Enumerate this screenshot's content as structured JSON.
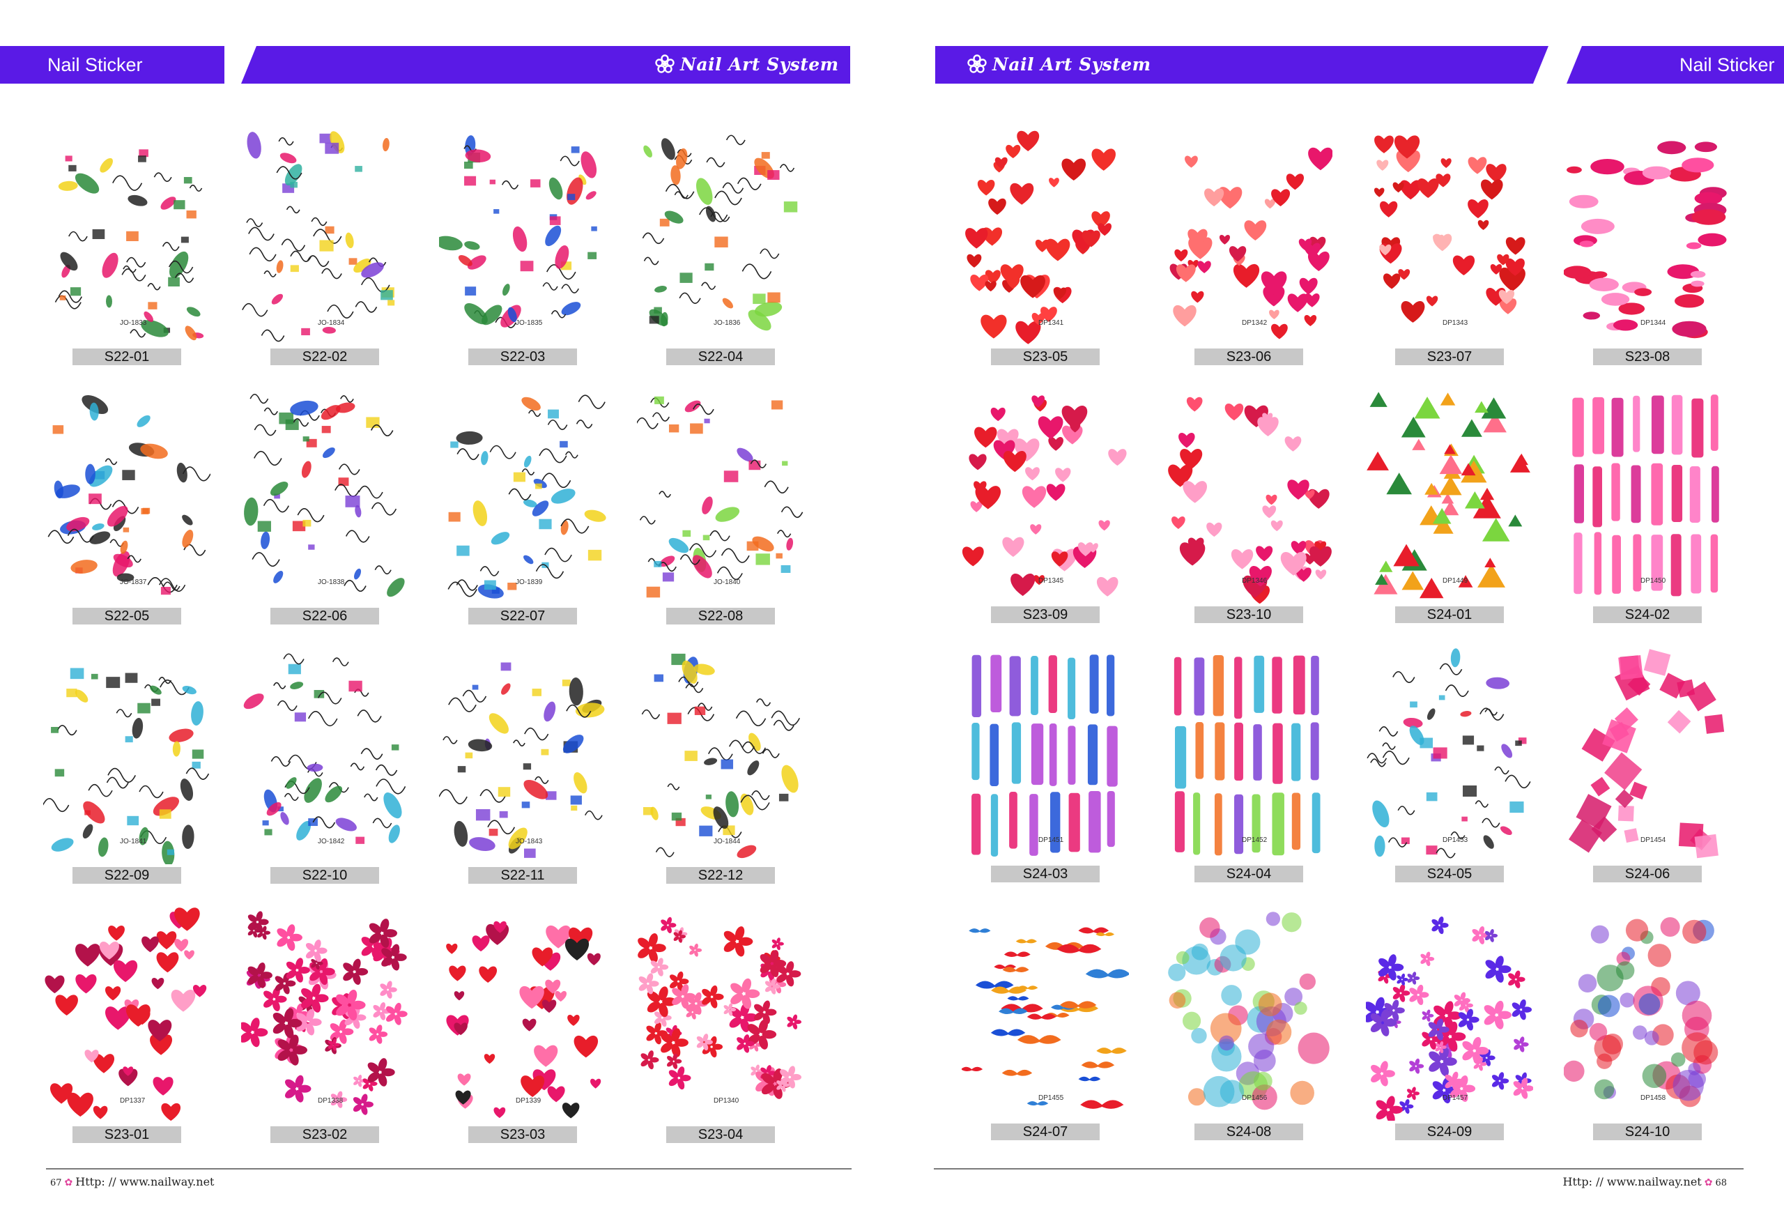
{
  "left_page": {
    "section_label": "Nail Sticker",
    "brand_label": "Nail Art System",
    "footer_url": "Http: // www.nailway.net",
    "page_number": "67",
    "sheets": [
      {
        "code": "S22-01",
        "print": "JO-1833",
        "palette": [
          "#222222",
          "#e8176b",
          "#f2d21a",
          "#2a8a3a",
          "#f26c1e"
        ]
      },
      {
        "code": "S22-02",
        "print": "JO-1834",
        "palette": [
          "#e8176b",
          "#7b3fd6",
          "#f2d21a",
          "#2fb0a0",
          "#f26c1e"
        ]
      },
      {
        "code": "S22-03",
        "print": "JO-1835",
        "palette": [
          "#1a4fd6",
          "#e81d2a",
          "#2a8a3a",
          "#f2d21a",
          "#e8176b"
        ]
      },
      {
        "code": "S22-04",
        "print": "JO-1836",
        "palette": [
          "#2a8a3a",
          "#f26c1e",
          "#222222",
          "#e8176b",
          "#7bd63f"
        ]
      },
      {
        "code": "S22-05",
        "print": "JO-1837",
        "palette": [
          "#1a4fd6",
          "#f26c1e",
          "#e8176b",
          "#222222",
          "#2fb0d6"
        ]
      },
      {
        "code": "S22-06",
        "print": "JO-1838",
        "palette": [
          "#e81d2a",
          "#7b3fd6",
          "#2a8a3a",
          "#1a4fd6",
          "#f2d21a"
        ]
      },
      {
        "code": "S22-07",
        "print": "JO-1839",
        "palette": [
          "#1a4fd6",
          "#f26c1e",
          "#2fb0d6",
          "#222222",
          "#f2d21a"
        ]
      },
      {
        "code": "S22-08",
        "print": "JO-1840",
        "palette": [
          "#e8176b",
          "#7b3fd6",
          "#2fb0d6",
          "#7bd63f",
          "#f26c1e"
        ]
      },
      {
        "code": "S22-09",
        "print": "JO-1841",
        "palette": [
          "#222222",
          "#e81d2a",
          "#f2d21a",
          "#2fb0d6",
          "#2a8a3a"
        ]
      },
      {
        "code": "S22-10",
        "print": "JO-1842",
        "palette": [
          "#7b3fd6",
          "#2a8a3a",
          "#2fb0d6",
          "#e8176b",
          "#1a4fd6"
        ]
      },
      {
        "code": "S22-11",
        "print": "JO-1843",
        "palette": [
          "#222222",
          "#e81d2a",
          "#1a4fd6",
          "#f2d21a",
          "#7b3fd6"
        ]
      },
      {
        "code": "S22-12",
        "print": "JO-1844",
        "palette": [
          "#e81d2a",
          "#2a8a3a",
          "#1a4fd6",
          "#222222",
          "#f2d21a"
        ]
      },
      {
        "code": "S23-01",
        "print": "DP1337",
        "palette": [
          "#e81d2a",
          "#e8176b",
          "#ff6fa8",
          "#b3124a",
          "#ff9ec7"
        ]
      },
      {
        "code": "S23-02",
        "print": "DP1338",
        "palette": [
          "#e8176b",
          "#ff4fa0",
          "#d61a8a",
          "#ff8cc6",
          "#b3124a"
        ]
      },
      {
        "code": "S23-03",
        "print": "DP1339",
        "palette": [
          "#e81d2a",
          "#e8176b",
          "#ff6fa8",
          "#b3124a",
          "#222222"
        ]
      },
      {
        "code": "S23-04",
        "print": "DP1340",
        "palette": [
          "#e81d2a",
          "#e8176b",
          "#ff6fa8",
          "#ff9ec7",
          "#d61a4a"
        ]
      }
    ]
  },
  "right_page": {
    "section_label": "Nail Sticker",
    "brand_label": "Nail Art System",
    "footer_url": "Http: // www.nailway.net",
    "page_number": "68",
    "sheets": [
      {
        "code": "S23-05",
        "print": "DP1341",
        "palette": [
          "#e81d2a",
          "#f2302a",
          "#d61a1a",
          "#ff4040",
          "#e8242a"
        ]
      },
      {
        "code": "S23-06",
        "print": "DP1342",
        "palette": [
          "#e81d2a",
          "#ff6f6f",
          "#d61a4a",
          "#ff9e9e",
          "#e8176b"
        ]
      },
      {
        "code": "S23-07",
        "print": "DP1343",
        "palette": [
          "#e81d2a",
          "#ff6f6f",
          "#d61a1a",
          "#ffb3b3",
          "#e8242a"
        ]
      },
      {
        "code": "S23-08",
        "print": "DP1344",
        "palette": [
          "#e8176b",
          "#ff4fa0",
          "#d61a6a",
          "#ff8cc6",
          "#e81d4a"
        ]
      },
      {
        "code": "S23-09",
        "print": "DP1345",
        "palette": [
          "#e81d2a",
          "#ff6fa8",
          "#e8176b",
          "#ff9ec7",
          "#d61a4a"
        ]
      },
      {
        "code": "S23-10",
        "print": "DP1346",
        "palette": [
          "#e81d2a",
          "#e8176b",
          "#ff4f6f",
          "#ff9ec7",
          "#d61a4a"
        ]
      },
      {
        "code": "S24-01",
        "print": "DP1449",
        "palette": [
          "#e81d2a",
          "#2a8a3a",
          "#f2a21a",
          "#ff6f8a",
          "#7bd63f"
        ]
      },
      {
        "code": "S24-02",
        "print": "DP1450",
        "palette": [
          "#e8176b",
          "#ff4fa0",
          "#f03ea8",
          "#ff6fc0",
          "#d61a8a"
        ]
      },
      {
        "code": "S24-03",
        "print": "DP1451",
        "palette": [
          "#7b3fd6",
          "#e8176b",
          "#1a4fd6",
          "#2fb0d6",
          "#b33fd6"
        ]
      },
      {
        "code": "S24-04",
        "print": "DP1452",
        "palette": [
          "#f26c1e",
          "#7bd63f",
          "#2fb0d6",
          "#7b3fd6",
          "#e8176b"
        ]
      },
      {
        "code": "S24-05",
        "print": "DP1453",
        "palette": [
          "#e8176b",
          "#7b3fd6",
          "#e81d2a",
          "#2fb0d6",
          "#222222"
        ]
      },
      {
        "code": "S24-06",
        "print": "DP1454",
        "palette": [
          "#e8176b",
          "#ff4fa0",
          "#d61a6a",
          "#ff8cc6",
          "#f03e8a"
        ]
      },
      {
        "code": "S24-07",
        "print": "DP1455",
        "palette": [
          "#1a4fd6",
          "#f26c1e",
          "#2f7fd6",
          "#f2a21a",
          "#e81d2a"
        ]
      },
      {
        "code": "S24-08",
        "print": "DP1456",
        "palette": [
          "#e8176b",
          "#7b3fd6",
          "#2fb0d6",
          "#7bd63f",
          "#f26c1e"
        ]
      },
      {
        "code": "S24-09",
        "print": "DP1457",
        "palette": [
          "#7b3fd6",
          "#e8176b",
          "#b33fd6",
          "#ff6fc0",
          "#5a2ae6"
        ]
      },
      {
        "code": "S24-10",
        "print": "DP1458",
        "palette": [
          "#e8176b",
          "#1a4fd6",
          "#2a8a3a",
          "#e81d2a",
          "#7b3fd6"
        ]
      }
    ]
  },
  "colors": {
    "band": "#5a1ae6",
    "code_bg": "#c8c8c8",
    "rule": "#7a7a7a",
    "accent": "#e0409a"
  }
}
